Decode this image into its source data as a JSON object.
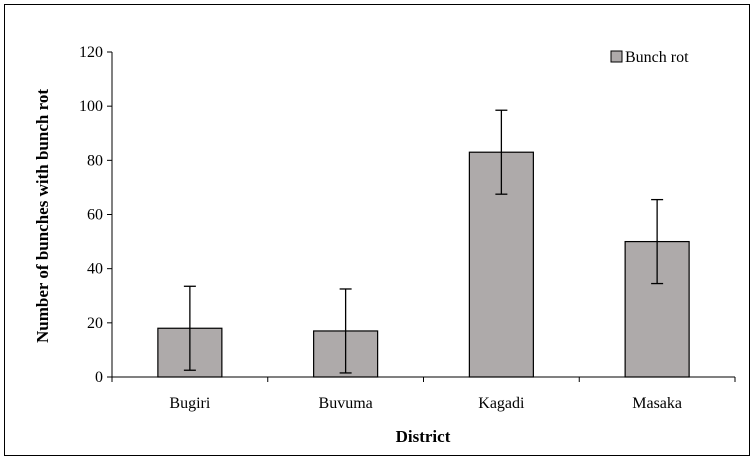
{
  "chart_data": {
    "type": "bar",
    "title": "",
    "xlabel": "District",
    "ylabel": "Number of bunches with bunch rot",
    "categories": [
      "Bugiri",
      "Buvuma",
      "Kagadi",
      "Masaka"
    ],
    "series": [
      {
        "name": "Bunch rot",
        "values": [
          18,
          17,
          83,
          50
        ],
        "error": [
          15.5,
          15.5,
          15.5,
          15.5
        ]
      }
    ],
    "ylim": [
      0,
      120
    ],
    "yticks": [
      0,
      20,
      40,
      60,
      80,
      100,
      120
    ],
    "grid": false,
    "legend": "top-right",
    "colors": {
      "bar_fill": "#aeaaaa",
      "bar_stroke": "#000000",
      "axis": "#000000"
    }
  }
}
